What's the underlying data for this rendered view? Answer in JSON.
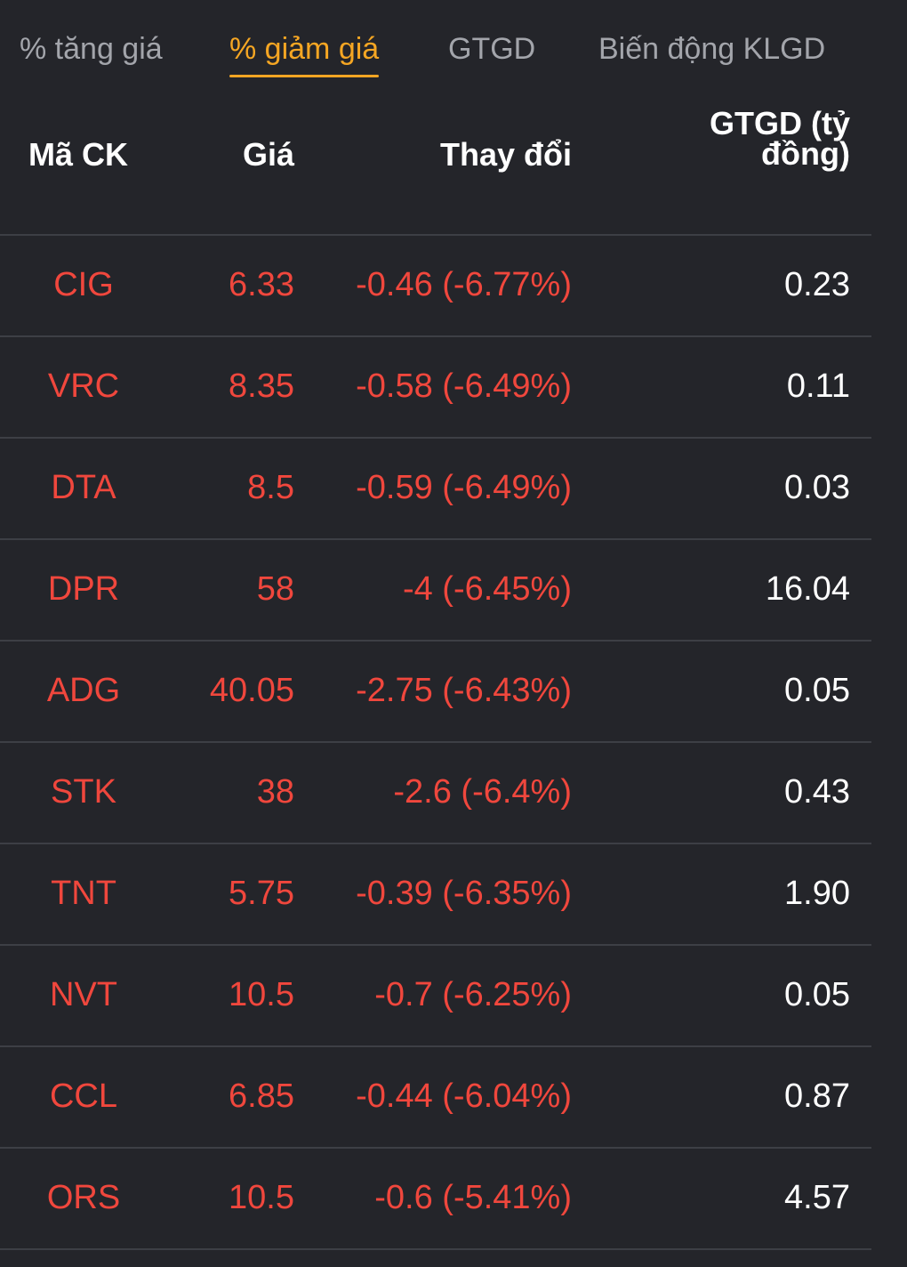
{
  "tabs": [
    {
      "label": "% tăng giá",
      "active": false
    },
    {
      "label": "% giảm giá",
      "active": true
    },
    {
      "label": "GTGD",
      "active": false
    },
    {
      "label": "Biến động KLGD",
      "active": false
    }
  ],
  "table": {
    "headers": {
      "symbol": "Mã CK",
      "price": "Giá",
      "change": "Thay đổi",
      "value_line1": "GTGD (tỷ",
      "value_line2": "đồng)"
    },
    "rows": [
      {
        "symbol": "CIG",
        "price": "6.33",
        "change": "-0.46 (-6.77%)",
        "value": "0.23"
      },
      {
        "symbol": "VRC",
        "price": "8.35",
        "change": "-0.58 (-6.49%)",
        "value": "0.11"
      },
      {
        "symbol": "DTA",
        "price": "8.5",
        "change": "-0.59 (-6.49%)",
        "value": "0.03"
      },
      {
        "symbol": "DPR",
        "price": "58",
        "change": "-4 (-6.45%)",
        "value": "16.04"
      },
      {
        "symbol": "ADG",
        "price": "40.05",
        "change": "-2.75 (-6.43%)",
        "value": "0.05"
      },
      {
        "symbol": "STK",
        "price": "38",
        "change": "-2.6 (-6.4%)",
        "value": "0.43"
      },
      {
        "symbol": "TNT",
        "price": "5.75",
        "change": "-0.39 (-6.35%)",
        "value": "1.90"
      },
      {
        "symbol": "NVT",
        "price": "10.5",
        "change": "-0.7 (-6.25%)",
        "value": "0.05"
      },
      {
        "symbol": "CCL",
        "price": "6.85",
        "change": "-0.44 (-6.04%)",
        "value": "0.87"
      },
      {
        "symbol": "ORS",
        "price": "10.5",
        "change": "-0.6 (-5.41%)",
        "value": "4.57"
      }
    ]
  },
  "colors": {
    "background": "#24252a",
    "active_tab": "#f5a623",
    "inactive_tab": "#a3a5ab",
    "decline": "#f0473d",
    "text": "#ffffff",
    "divider": "#3d3f45"
  }
}
